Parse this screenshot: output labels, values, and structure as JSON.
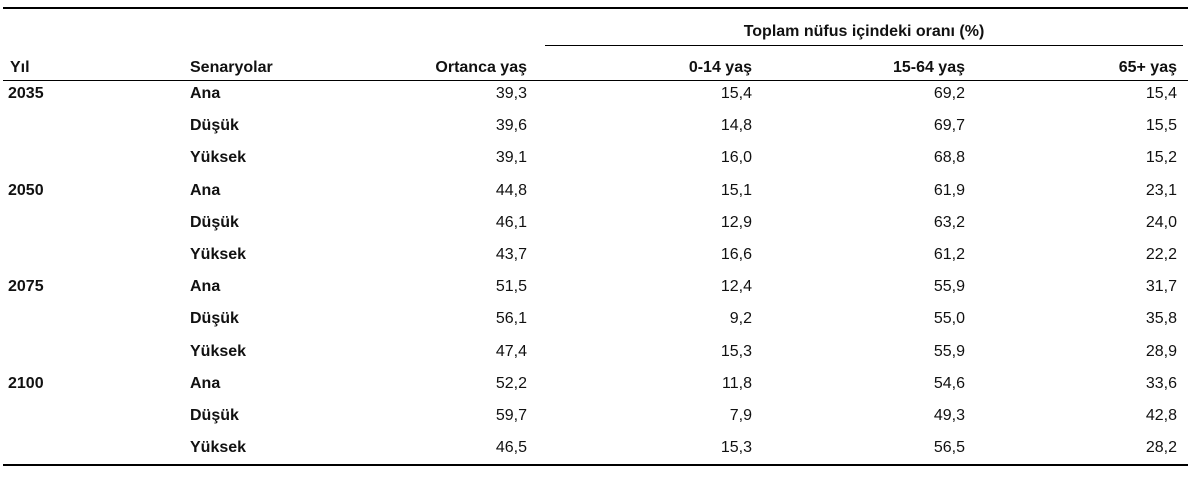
{
  "header": {
    "group_title": "Toplam nüfus içindeki oranı (%)",
    "columns": [
      "Yıl",
      "Senaryolar",
      "Ortanca yaş",
      "0-14 yaş",
      "15-64 yaş",
      "65+ yaş"
    ]
  },
  "table": {
    "groups": [
      {
        "year": "2035",
        "rows": [
          {
            "scenario": "Ana",
            "values": [
              "39,3",
              "15,4",
              "69,2",
              "15,4"
            ]
          },
          {
            "scenario": "Düşük",
            "values": [
              "39,6",
              "14,8",
              "69,7",
              "15,5"
            ]
          },
          {
            "scenario": "Yüksek",
            "values": [
              "39,1",
              "16,0",
              "68,8",
              "15,2"
            ]
          }
        ]
      },
      {
        "year": "2050",
        "rows": [
          {
            "scenario": "Ana",
            "values": [
              "44,8",
              "15,1",
              "61,9",
              "23,1"
            ]
          },
          {
            "scenario": "Düşük",
            "values": [
              "46,1",
              "12,9",
              "63,2",
              "24,0"
            ]
          },
          {
            "scenario": "Yüksek",
            "values": [
              "43,7",
              "16,6",
              "61,2",
              "22,2"
            ]
          }
        ]
      },
      {
        "year": "2075",
        "rows": [
          {
            "scenario": "Ana",
            "values": [
              "51,5",
              "12,4",
              "55,9",
              "31,7"
            ]
          },
          {
            "scenario": "Düşük",
            "values": [
              "56,1",
              "9,2",
              "55,0",
              "35,8"
            ]
          },
          {
            "scenario": "Yüksek",
            "values": [
              "47,4",
              "15,3",
              "55,9",
              "28,9"
            ]
          }
        ]
      },
      {
        "year": "2100",
        "rows": [
          {
            "scenario": "Ana",
            "values": [
              "52,2",
              "11,8",
              "54,6",
              "33,6"
            ]
          },
          {
            "scenario": "Düşük",
            "values": [
              "59,7",
              "7,9",
              "49,3",
              "42,8"
            ]
          },
          {
            "scenario": "Yüksek",
            "values": [
              "46,5",
              "15,3",
              "56,5",
              "28,2"
            ]
          }
        ]
      }
    ]
  }
}
